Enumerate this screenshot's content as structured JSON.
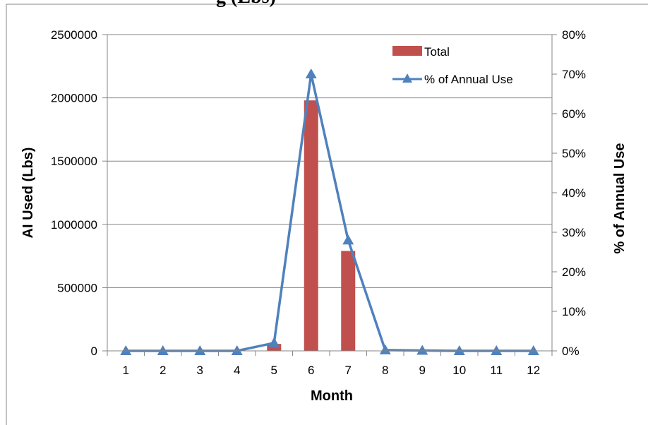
{
  "chart_data": {
    "type": "bar",
    "title": "g (Lbs) ",
    "xlabel": "Month",
    "ylabel": "AI Used (Lbs)",
    "y2label": "% of Annual Use",
    "categories": [
      "1",
      "2",
      "3",
      "4",
      "5",
      "6",
      "7",
      "8",
      "9",
      "10",
      "11",
      "12"
    ],
    "ylim": [
      0,
      2500000
    ],
    "y2lim": [
      0,
      0.8
    ],
    "y_ticks": [
      "0",
      "500000",
      "1000000",
      "1500000",
      "2000000",
      "2500000"
    ],
    "y2_ticks": [
      "0%",
      "10%",
      "20%",
      "30%",
      "40%",
      "50%",
      "60%",
      "70%",
      "80%"
    ],
    "grid": true,
    "legend_position": "top-right",
    "series": [
      {
        "name": "Total",
        "type": "bar",
        "axis": "left",
        "color": "#C0504D",
        "values": [
          0,
          0,
          0,
          0,
          55000,
          1980000,
          790000,
          0,
          0,
          0,
          0,
          0
        ]
      },
      {
        "name": "% of Annual Use",
        "type": "line",
        "axis": "right",
        "color": "#4F81BD",
        "marker": "triangle",
        "values": [
          0,
          0,
          0,
          0,
          0.02,
          0.7,
          0.28,
          0.002,
          0.001,
          0,
          0,
          0
        ]
      }
    ]
  }
}
